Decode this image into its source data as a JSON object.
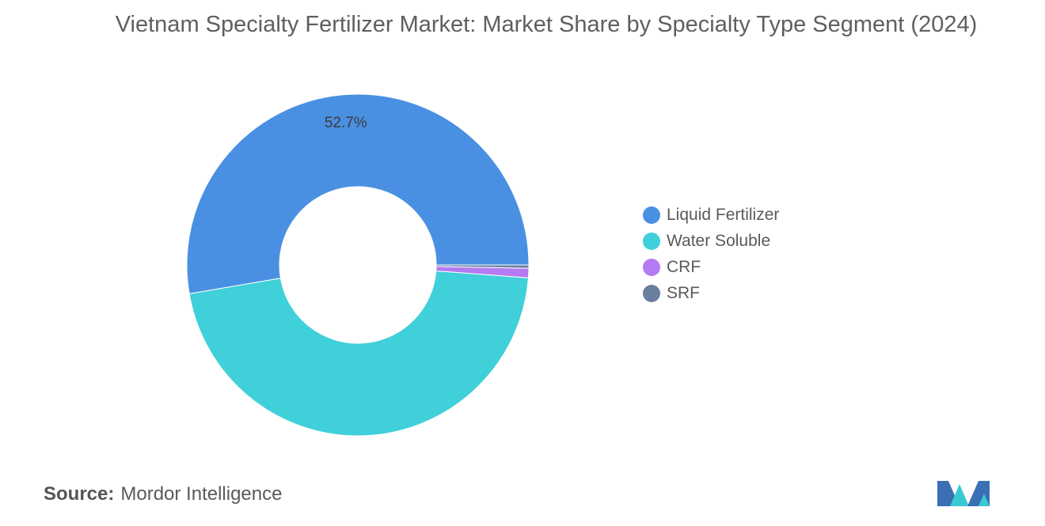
{
  "title": "Vietnam Specialty Fertilizer Market: Market Share by Specialty Type Segment (2024)",
  "source": {
    "label": "Source:",
    "value": "Mordor Intelligence"
  },
  "logo": {
    "icon": "mordor-intelligence-logo-icon",
    "colors": [
      "#3a6fb5",
      "#39c9d3"
    ]
  },
  "chart_data": {
    "type": "pie",
    "variant": "donut",
    "title": "Vietnam Specialty Fertilizer Market: Market Share by Specialty Type Segment (2024)",
    "legend_position": "right",
    "slices": [
      {
        "name": "Liquid Fertilizer",
        "value": 52.7,
        "color": "#4a90e2",
        "label": "52.7%"
      },
      {
        "name": "Water Soluble",
        "value": 46.1,
        "color": "#3fd0d9",
        "label": ""
      },
      {
        "name": "CRF",
        "value": 0.9,
        "color": "#b57bf2",
        "label": ""
      },
      {
        "name": "SRF",
        "value": 0.3,
        "color": "#6a7fa0",
        "label": ""
      }
    ]
  }
}
